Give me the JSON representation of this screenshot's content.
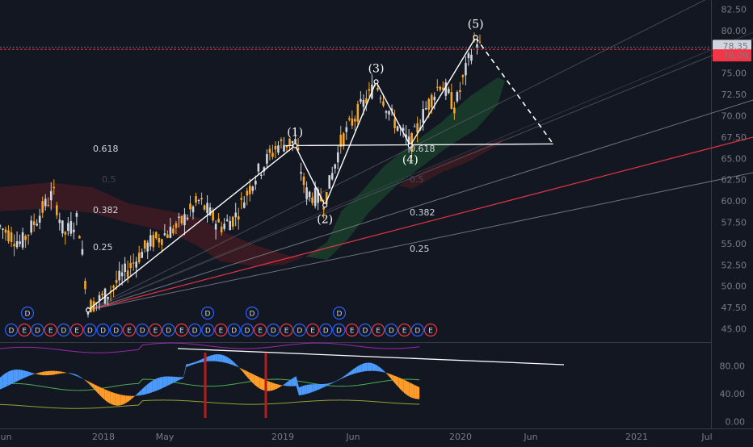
{
  "chart_data": {
    "type": "candlestick",
    "price_axis": {
      "ticks": [
        "82.50",
        "80.00",
        "77.50",
        "75.00",
        "72.50",
        "70.00",
        "67.50",
        "65.00",
        "62.50",
        "60.00",
        "57.50",
        "55.00",
        "52.50",
        "50.00",
        "47.50",
        "45.00"
      ],
      "ylim": [
        44.0,
        83.5
      ]
    },
    "price_tags": [
      {
        "value": "78.35",
        "style": "light"
      },
      {
        "value": "78.09",
        "style": "red"
      }
    ],
    "oscillator_axis": {
      "ticks": [
        "80.00",
        "40.00",
        "0.00"
      ],
      "ylim": [
        -5,
        112
      ]
    },
    "time_axis": {
      "ticks": [
        "Jun",
        "2018",
        "May",
        "2019",
        "Jun",
        "2020",
        "Jun",
        "2021",
        "Jul"
      ]
    },
    "elliott_waves": [
      {
        "label": "(1)",
        "date": 0.415,
        "price": 66.5
      },
      {
        "label": "(2)",
        "date": 0.457,
        "price": 59.5
      },
      {
        "label": "(3)",
        "date": 0.529,
        "price": 74.0
      },
      {
        "label": "(4)",
        "date": 0.577,
        "price": 66.5
      },
      {
        "label": "(5)",
        "date": 0.669,
        "price": 79.2
      }
    ],
    "wave_start": {
      "date": 0.124,
      "price": 47.2
    },
    "projection_end": {
      "date": 0.778,
      "price": 66.7
    },
    "fib_levels_left": [
      "0.618",
      "0.5",
      "0.382",
      "0.25"
    ],
    "fib_levels_right": [
      "0.618",
      "0.5",
      "0.382",
      "0.25"
    ],
    "dividend_markers_top": [
      "D",
      "D",
      "D",
      "D"
    ],
    "event_markers": [
      "D",
      "E",
      "D",
      "E",
      "D",
      "E",
      "D",
      "D",
      "D",
      "E",
      "D",
      "E",
      "D",
      "E",
      "D",
      "D",
      "E",
      "D",
      "D",
      "E",
      "D",
      "E",
      "D",
      "E",
      "D",
      "D",
      "E",
      "D",
      "E",
      "D",
      "E",
      "D",
      "E"
    ],
    "colors": {
      "background": "#131722",
      "bullish": "#d1d4dc",
      "bearish": "#f5a623",
      "red_line": "#f23645",
      "oscillator_blue": "#4c9bff",
      "oscillator_orange": "#ff9c2a",
      "cloud_green": "#1e5a32",
      "cloud_red": "#5a1e22"
    }
  }
}
